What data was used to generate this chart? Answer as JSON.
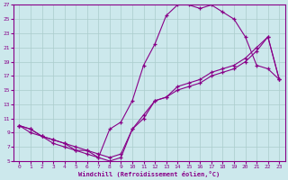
{
  "xlabel": "Windchill (Refroidissement éolien,°C)",
  "bg_color": "#cce8ec",
  "line_color": "#880088",
  "grid_color": "#aacccc",
  "xlim": [
    -0.5,
    23.5
  ],
  "ylim": [
    5,
    27
  ],
  "xticks": [
    0,
    1,
    2,
    3,
    4,
    5,
    6,
    7,
    8,
    9,
    10,
    11,
    12,
    13,
    14,
    15,
    16,
    17,
    18,
    19,
    20,
    21,
    22,
    23
  ],
  "yticks": [
    5,
    7,
    9,
    11,
    13,
    15,
    17,
    19,
    21,
    23,
    25,
    27
  ],
  "curve1_x": [
    0,
    1,
    2,
    3,
    4,
    5,
    6,
    7,
    8,
    9,
    10,
    11,
    12,
    13,
    14,
    15,
    16,
    17,
    18,
    19,
    20,
    21,
    22,
    23
  ],
  "curve1_y": [
    10,
    9.5,
    8.5,
    8.0,
    7.5,
    6.5,
    6.0,
    5.5,
    9.5,
    10.5,
    13.5,
    18.5,
    21.5,
    25.5,
    27.0,
    27.0,
    26.5,
    27.0,
    26.0,
    25.0,
    22.5,
    18.5,
    18.0,
    16.5
  ],
  "curve2_x": [
    0,
    1,
    2,
    3,
    4,
    5,
    6,
    7,
    8,
    9,
    10,
    11,
    12,
    13,
    14,
    15,
    16,
    17,
    18,
    19,
    20,
    21,
    22,
    23
  ],
  "curve2_y": [
    10,
    9.5,
    8.5,
    8.0,
    7.5,
    7.0,
    6.5,
    6.0,
    5.5,
    6.0,
    9.5,
    11.0,
    13.5,
    14.0,
    15.0,
    15.5,
    16.0,
    17.0,
    17.5,
    18.0,
    19.0,
    20.5,
    22.5,
    16.5
  ],
  "curve3_x": [
    0,
    1,
    2,
    3,
    4,
    5,
    6,
    7,
    8,
    9,
    10,
    11,
    12,
    13,
    14,
    15,
    16,
    17,
    18,
    19,
    20,
    21,
    22,
    23
  ],
  "curve3_y": [
    10,
    9.0,
    8.5,
    7.5,
    7.0,
    6.5,
    6.5,
    5.5,
    5.0,
    5.5,
    9.5,
    11.5,
    13.5,
    14.0,
    15.5,
    16.0,
    16.5,
    17.5,
    18.0,
    18.5,
    19.5,
    21.0,
    22.5,
    16.5
  ]
}
